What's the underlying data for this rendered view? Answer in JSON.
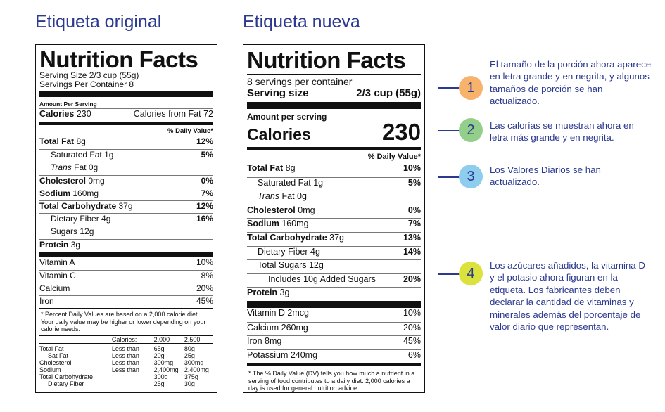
{
  "headings": {
    "original": "Etiqueta original",
    "new": "Etiqueta nueva"
  },
  "original": {
    "title": "Nutrition Facts",
    "serving_size": "Serving Size 2/3 cup (55g)",
    "servings_per_container": "Servings Per Container 8",
    "amount_per_serving": "Amount Per Serving",
    "calories_label": "Calories",
    "calories_value": "230",
    "calories_from_fat": "Calories from Fat 72",
    "daily_value_header": "% Daily Value*",
    "nutrients": [
      {
        "name": "Total Fat",
        "amount": "8g",
        "dv": "12%",
        "bold": true,
        "indent": 0
      },
      {
        "name": "Saturated Fat",
        "amount": "1g",
        "dv": "5%",
        "bold": false,
        "indent": 1
      },
      {
        "name": "Trans",
        "name_suffix": "Fat 0g",
        "amount": "",
        "dv": "",
        "bold": false,
        "indent": 1,
        "italic_name": true
      },
      {
        "name": "Cholesterol",
        "amount": "0mg",
        "dv": "0%",
        "bold": true,
        "indent": 0
      },
      {
        "name": "Sodium",
        "amount": "160mg",
        "dv": "7%",
        "bold": true,
        "indent": 0
      },
      {
        "name": "Total Carbohydrate",
        "amount": "37g",
        "dv": "12%",
        "bold": true,
        "indent": 0
      },
      {
        "name": "Dietary Fiber",
        "amount": "4g",
        "dv": "16%",
        "bold": false,
        "indent": 1
      },
      {
        "name": "Sugars",
        "amount": "12g",
        "dv": "",
        "bold": false,
        "indent": 1
      },
      {
        "name": "Protein",
        "amount": "3g",
        "dv": "",
        "bold": true,
        "indent": 0
      }
    ],
    "vitamins": [
      {
        "name": "Vitamin A",
        "dv": "10%"
      },
      {
        "name": "Vitamin C",
        "dv": "8%"
      },
      {
        "name": "Calcium",
        "dv": "20%"
      },
      {
        "name": "Iron",
        "dv": "45%"
      }
    ],
    "footnote": "* Percent Daily Values are based on a 2,000 calorie diet. Your daily value may be higher or lower depending on your calorie needs.",
    "footnote_table": {
      "header": [
        "",
        "Calories:",
        "2,000",
        "2,500"
      ],
      "rows": [
        [
          "Total Fat",
          "Less than",
          "65g",
          "80g"
        ],
        [
          "Sat Fat",
          "Less than",
          "20g",
          "25g"
        ],
        [
          "Cholesterol",
          "Less than",
          "300mg",
          "300mg"
        ],
        [
          "Sodium",
          "Less than",
          "2,400mg",
          "2,400mg"
        ],
        [
          "Total Carbohydrate",
          "",
          "300g",
          "375g"
        ],
        [
          "Dietary Fiber",
          "",
          "25g",
          "30g"
        ]
      ]
    }
  },
  "new": {
    "title": "Nutrition Facts",
    "servings_per_container": "8 servings per container",
    "serving_size_label": "Serving size",
    "serving_size_value": "2/3 cup (55g)",
    "amount_per_serving": "Amount per serving",
    "calories_label": "Calories",
    "calories_value": "230",
    "daily_value_header": "% Daily Value*",
    "nutrients": [
      {
        "name": "Total Fat",
        "amount": "8g",
        "dv": "10%",
        "bold": true,
        "indent": 0
      },
      {
        "name": "Saturated Fat",
        "amount": "1g",
        "dv": "5%",
        "bold": false,
        "indent": 1
      },
      {
        "name": "Trans",
        "name_suffix": "Fat 0g",
        "amount": "",
        "dv": "",
        "bold": false,
        "indent": 1,
        "italic_name": true
      },
      {
        "name": "Cholesterol",
        "amount": "0mg",
        "dv": "0%",
        "bold": true,
        "indent": 0
      },
      {
        "name": "Sodium",
        "amount": "160mg",
        "dv": "7%",
        "bold": true,
        "indent": 0
      },
      {
        "name": "Total Carbohydrate",
        "amount": "37g",
        "dv": "13%",
        "bold": true,
        "indent": 0
      },
      {
        "name": "Dietary Fiber",
        "amount": "4g",
        "dv": "14%",
        "bold": false,
        "indent": 1
      },
      {
        "name": "Total Sugars",
        "amount": "12g",
        "dv": "",
        "bold": false,
        "indent": 1
      },
      {
        "name": "Includes 10g Added Sugars",
        "amount": "",
        "dv": "20%",
        "bold": false,
        "indent": 2
      },
      {
        "name": "Protein",
        "amount": "3g",
        "dv": "",
        "bold": true,
        "indent": 0
      }
    ],
    "vitamins": [
      {
        "name": "Vitamin D 2mcg",
        "dv": "10%"
      },
      {
        "name": "Calcium 260mg",
        "dv": "20%"
      },
      {
        "name": "Iron 8mg",
        "dv": "45%"
      },
      {
        "name": "Potassium 240mg",
        "dv": "6%"
      }
    ],
    "footnote": "* The % Daily Value (DV) tells you how much a nutrient in a serving of food contributes to a daily diet. 2,000 calories a day is used for general nutrition advice."
  },
  "callouts": [
    {
      "number": "1",
      "color": "#f7b26b",
      "text": "El tamaño de la porción ahora aparece en letra grande y en negrita, y algunos tamaños de porción se han actualizado."
    },
    {
      "number": "2",
      "color": "#93cf8a",
      "text": "Las calorías se muestran ahora en letra más grande y en negrita."
    },
    {
      "number": "3",
      "color": "#8fcdee",
      "text": "Los Valores Diarios se han actualizado."
    },
    {
      "number": "4",
      "color": "#dbe23c",
      "text": "Los azúcares añadidos, la vitamina D y el potasio ahora figuran en la etiqueta. Los fabricantes deben declarar la cantidad de vitaminas y minerales además del porcentaje de valor diario que representan."
    }
  ]
}
